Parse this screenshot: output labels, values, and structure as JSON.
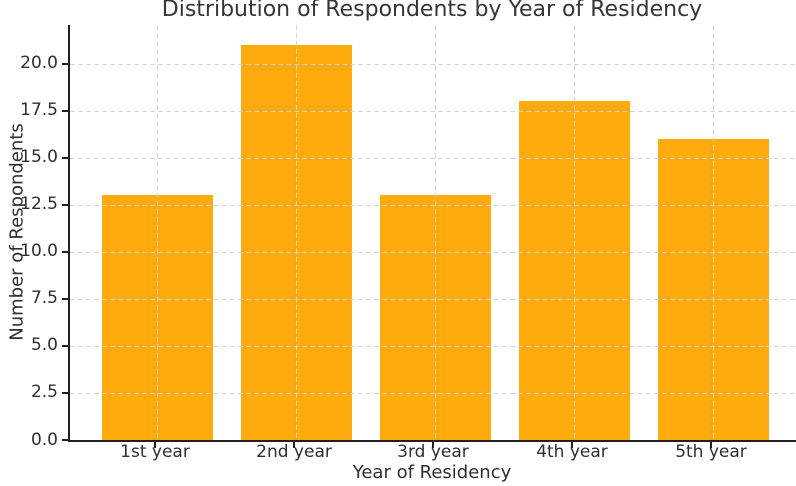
{
  "chart_data": {
    "type": "bar",
    "title": "Distribution of Respondents by Year of Residency",
    "xlabel": "Year of Residency",
    "ylabel": "Number of Respondents",
    "categories": [
      "1st year",
      "2nd year",
      "3rd year",
      "4th year",
      "5th year"
    ],
    "values": [
      13,
      21,
      13,
      18,
      16
    ],
    "ylim": [
      0,
      22.05
    ],
    "yticks": [
      0,
      2.5,
      5,
      7.5,
      10,
      12.5,
      15,
      17.5,
      20
    ],
    "ytick_labels": [
      "0.0",
      "2.5",
      "5.0",
      "7.5",
      "10.0",
      "12.5",
      "15.0",
      "17.5",
      "20.0"
    ],
    "bar_color": "#FFAB0D",
    "grid": true,
    "grid_style": "dashed",
    "legend_position": "none"
  }
}
